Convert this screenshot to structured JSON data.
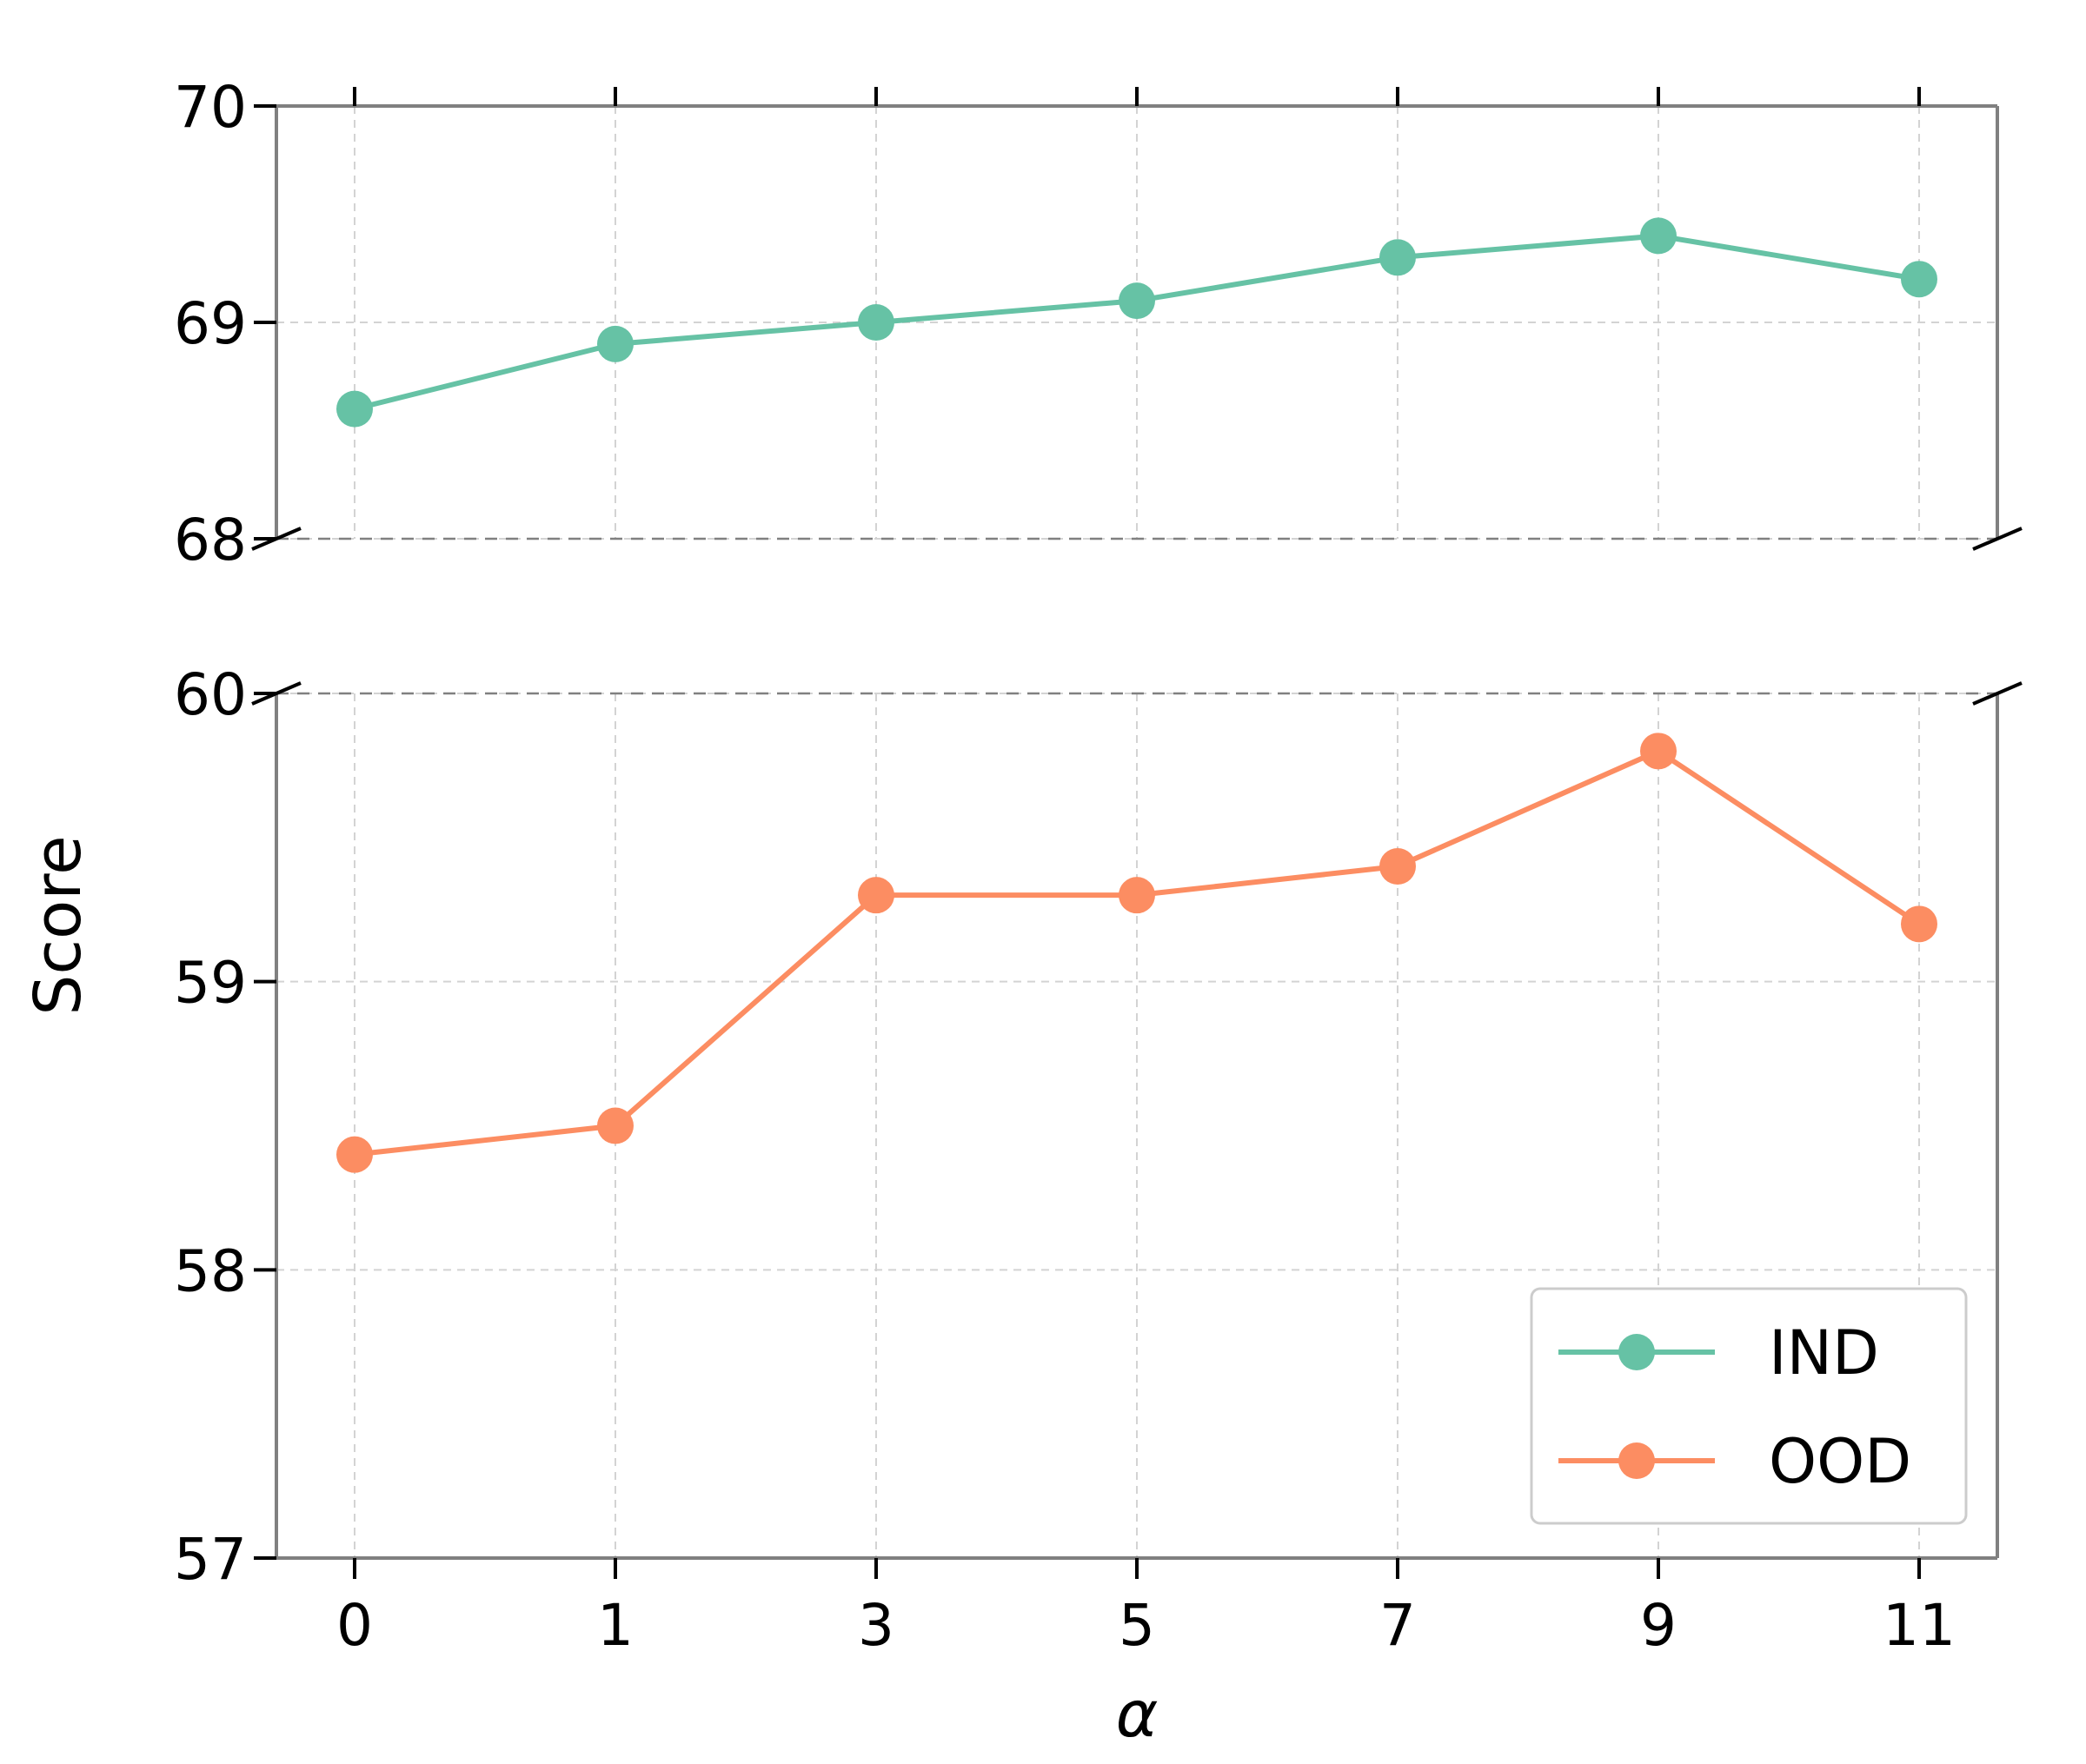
{
  "chart_data": {
    "type": "line",
    "layout": "broken-y-axis",
    "xlabel": "α",
    "ylabel": "Score",
    "x": [
      "0",
      "1",
      "3",
      "5",
      "7",
      "9",
      "11"
    ],
    "grid": true,
    "legend_position": "lower-right",
    "panels": [
      {
        "ylim": [
          68,
          70
        ],
        "yticks": [
          "68",
          "69",
          "70"
        ],
        "series": [
          {
            "name": "IND",
            "color": "#66c2a5",
            "values": [
              68.6,
              68.9,
              69.0,
              69.1,
              69.3,
              69.4,
              69.2
            ]
          }
        ]
      },
      {
        "ylim": [
          57,
          60
        ],
        "yticks": [
          "57",
          "58",
          "59",
          "60"
        ],
        "series": [
          {
            "name": "OOD",
            "color": "#fc8d62",
            "values": [
              58.4,
              58.5,
              59.3,
              59.3,
              59.4,
              59.8,
              59.2
            ]
          }
        ]
      }
    ]
  }
}
